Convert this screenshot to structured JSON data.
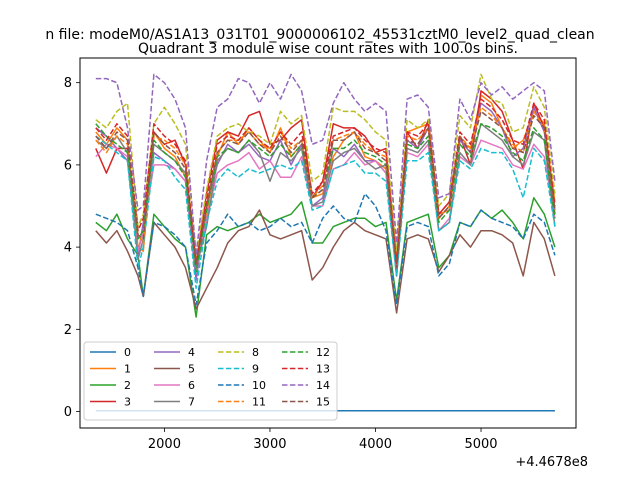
{
  "figure": {
    "suptitle": "n file: modeM0/AS1A13_031T01_9000006102_45531cztM0_level2_quad_clean",
    "title": "Quadrant 3 module wise count rates with 100.0s bins.",
    "x_offset_label": "+4.4678e8"
  },
  "chart_data": {
    "type": "line",
    "title": "Quadrant 3 module wise count rates with 100.0s bins.",
    "xlabel": "",
    "ylabel": "",
    "x_offset": 446780000,
    "xlim": [
      1200,
      5900
    ],
    "ylim": [
      -0.4,
      8.6
    ],
    "xticks": [
      2000,
      3000,
      4000,
      5000
    ],
    "yticks": [
      0,
      2,
      4,
      6,
      8
    ],
    "xtick_labels": [
      "2000",
      "3000",
      "4000",
      "5000"
    ],
    "ytick_labels": [
      "0",
      "2",
      "4",
      "6",
      "8"
    ],
    "grid": false,
    "legend": {
      "position": "lower-left",
      "ncol": 4
    },
    "x": [
      1350,
      1450,
      1550,
      1650,
      1750,
      1800,
      1900,
      2000,
      2100,
      2200,
      2300,
      2400,
      2500,
      2600,
      2700,
      2800,
      2900,
      3000,
      3100,
      3200,
      3300,
      3400,
      3500,
      3600,
      3700,
      3800,
      3900,
      4000,
      4100,
      4200,
      4300,
      4400,
      4500,
      4600,
      4700,
      4800,
      4900,
      5000,
      5100,
      5200,
      5300,
      5400,
      5500,
      5600,
      5700
    ],
    "series": [
      {
        "name": "0",
        "color": "#1f77b4",
        "dash": "solid",
        "values": [
          0.02,
          0.02,
          0.02,
          0.02,
          0.02,
          0.02,
          0.02,
          0.02,
          0.02,
          0.02,
          0.02,
          0.02,
          0.02,
          0.02,
          0.02,
          0.02,
          0.02,
          0.02,
          0.02,
          0.02,
          0.02,
          0.02,
          0.02,
          0.02,
          0.02,
          0.02,
          0.02,
          0.02,
          0.02,
          0.02,
          0.02,
          0.02,
          0.02,
          0.02,
          0.02,
          0.02,
          0.02,
          0.02,
          0.02,
          0.02,
          0.02,
          0.02,
          0.02,
          0.02,
          0.02
        ]
      },
      {
        "name": "1",
        "color": "#ff7f0e",
        "dash": "solid",
        "values": [
          6.8,
          6.5,
          6.9,
          6.6,
          4.0,
          3.9,
          6.8,
          6.4,
          6.2,
          5.7,
          3.6,
          4.8,
          6.2,
          6.8,
          6.5,
          6.9,
          6.6,
          6.3,
          6.9,
          6.2,
          6.5,
          5.2,
          5.3,
          6.2,
          6.6,
          6.8,
          6.2,
          6.1,
          5.9,
          3.6,
          6.8,
          6.9,
          7.0,
          4.8,
          4.9,
          6.6,
          6.4,
          7.7,
          7.5,
          6.9,
          6.4,
          6.6,
          7.3,
          7.0,
          5.1
        ]
      },
      {
        "name": "2",
        "color": "#2ca02c",
        "dash": "solid",
        "values": [
          4.6,
          4.4,
          4.8,
          4.2,
          3.8,
          2.8,
          4.8,
          4.5,
          4.2,
          4.0,
          2.3,
          4.3,
          4.5,
          4.4,
          4.5,
          4.6,
          4.8,
          4.6,
          4.7,
          4.8,
          5.1,
          4.1,
          4.1,
          4.5,
          4.6,
          4.7,
          4.7,
          4.5,
          4.6,
          2.7,
          4.6,
          4.7,
          4.8,
          3.5,
          3.8,
          4.6,
          4.5,
          4.9,
          4.7,
          4.9,
          4.6,
          4.2,
          5.2,
          4.8,
          4.0
        ]
      },
      {
        "name": "3",
        "color": "#d62728",
        "dash": "solid",
        "values": [
          6.4,
          5.8,
          6.4,
          6.4,
          3.9,
          4.4,
          6.8,
          6.5,
          6.6,
          6.0,
          3.6,
          5.3,
          6.6,
          6.8,
          6.7,
          7.2,
          7.3,
          6.5,
          6.6,
          6.9,
          7.1,
          5.2,
          5.6,
          7.0,
          6.9,
          6.9,
          6.7,
          6.3,
          6.4,
          3.7,
          6.8,
          6.4,
          7.1,
          4.8,
          5.1,
          6.7,
          6.0,
          7.8,
          7.6,
          7.3,
          6.6,
          5.9,
          7.5,
          6.9,
          4.8
        ]
      },
      {
        "name": "4",
        "color": "#9467bd",
        "dash": "solid",
        "values": [
          6.9,
          6.7,
          6.4,
          6.1,
          3.8,
          4.6,
          6.3,
          6.1,
          5.9,
          5.6,
          3.2,
          5.0,
          6.0,
          6.5,
          6.3,
          6.5,
          6.2,
          6.1,
          6.6,
          6.0,
          6.5,
          5.0,
          5.2,
          6.4,
          6.2,
          6.5,
          6.1,
          6.1,
          5.8,
          3.3,
          6.6,
          6.4,
          6.9,
          4.7,
          5.0,
          6.6,
          6.3,
          7.5,
          7.3,
          6.9,
          6.2,
          6.4,
          7.4,
          6.8,
          4.9
        ]
      },
      {
        "name": "5",
        "color": "#8c564b",
        "dash": "solid",
        "values": [
          4.4,
          4.1,
          4.4,
          3.9,
          3.3,
          2.8,
          4.6,
          4.3,
          4.0,
          3.5,
          2.5,
          3.0,
          3.5,
          4.1,
          4.4,
          4.5,
          4.9,
          4.3,
          4.2,
          4.3,
          4.4,
          3.2,
          3.5,
          4.0,
          4.4,
          4.6,
          4.4,
          4.3,
          4.2,
          2.4,
          4.2,
          4.3,
          4.2,
          3.4,
          3.8,
          4.3,
          4.0,
          4.4,
          4.4,
          4.3,
          4.1,
          3.3,
          4.6,
          4.2,
          3.3
        ]
      },
      {
        "name": "6",
        "color": "#e377c2",
        "dash": "solid",
        "values": [
          6.2,
          6.5,
          6.4,
          6.2,
          3.9,
          4.4,
          6.0,
          6.0,
          5.9,
          5.6,
          3.4,
          4.7,
          5.8,
          6.0,
          6.1,
          6.3,
          5.9,
          6.1,
          5.7,
          5.7,
          6.2,
          5.0,
          5.0,
          5.9,
          6.0,
          6.3,
          6.0,
          6.1,
          5.8,
          3.4,
          6.3,
          6.2,
          6.5,
          4.4,
          4.7,
          6.2,
          6.0,
          6.6,
          6.5,
          6.4,
          6.0,
          5.9,
          6.5,
          6.2,
          4.7
        ]
      },
      {
        "name": "7",
        "color": "#7f7f7f",
        "dash": "solid",
        "values": [
          6.6,
          6.4,
          6.7,
          6.3,
          3.7,
          4.2,
          6.5,
          6.3,
          6.1,
          5.8,
          3.5,
          4.5,
          6.1,
          6.4,
          6.3,
          6.6,
          6.3,
          5.6,
          6.3,
          6.1,
          6.4,
          5.0,
          5.1,
          6.1,
          6.3,
          6.4,
          6.1,
          5.9,
          6.0,
          3.3,
          6.4,
          6.3,
          6.6,
          4.4,
          4.6,
          6.3,
          6.0,
          7.0,
          6.8,
          6.6,
          6.2,
          6.0,
          6.8,
          6.6,
          4.5
        ]
      },
      {
        "name": "8",
        "color": "#bcbd22",
        "dash": "dashed",
        "values": [
          7.1,
          6.9,
          7.3,
          7.5,
          4.5,
          4.8,
          7.0,
          7.4,
          7.0,
          6.5,
          3.8,
          5.4,
          6.7,
          6.9,
          7.0,
          6.8,
          6.7,
          6.5,
          7.3,
          7.0,
          7.2,
          5.6,
          5.8,
          7.4,
          7.3,
          7.3,
          7.1,
          6.8,
          6.6,
          3.9,
          7.1,
          6.9,
          7.1,
          5.0,
          5.3,
          7.2,
          6.9,
          8.2,
          7.6,
          7.5,
          6.8,
          6.9,
          7.9,
          7.4,
          5.3
        ]
      },
      {
        "name": "9",
        "color": "#17becf",
        "dash": "dashed",
        "values": [
          6.7,
          6.5,
          6.3,
          6.1,
          3.5,
          4.0,
          6.2,
          6.1,
          5.7,
          5.4,
          3.0,
          4.6,
          5.6,
          5.9,
          5.7,
          5.9,
          5.8,
          5.9,
          6.0,
          5.9,
          6.1,
          4.9,
          5.0,
          5.9,
          6.0,
          6.1,
          5.8,
          5.8,
          5.6,
          3.3,
          6.1,
          6.1,
          6.3,
          4.4,
          4.6,
          6.1,
          5.9,
          6.4,
          6.3,
          6.3,
          5.9,
          5.2,
          6.4,
          6.1,
          4.5
        ]
      },
      {
        "name": "10",
        "color": "#1f77b4",
        "dash": "dashed",
        "values": [
          4.8,
          4.7,
          4.6,
          4.4,
          3.5,
          2.8,
          4.6,
          4.5,
          4.3,
          4.0,
          2.6,
          4.1,
          4.4,
          4.8,
          4.5,
          4.6,
          4.4,
          4.5,
          4.7,
          4.5,
          4.6,
          4.1,
          4.7,
          5.0,
          4.7,
          4.6,
          5.3,
          5.0,
          4.4,
          2.6,
          4.5,
          4.6,
          4.5,
          3.3,
          3.6,
          4.6,
          4.5,
          4.9,
          4.7,
          4.6,
          4.5,
          4.2,
          4.8,
          4.6,
          3.8
        ]
      },
      {
        "name": "11",
        "color": "#ff7f0e",
        "dash": "dashed",
        "values": [
          6.6,
          6.3,
          6.7,
          6.5,
          4.3,
          4.1,
          6.7,
          6.6,
          6.4,
          6.0,
          3.7,
          4.9,
          6.3,
          6.6,
          6.6,
          6.8,
          6.5,
          6.4,
          6.8,
          6.4,
          6.6,
          5.2,
          5.5,
          6.6,
          6.7,
          6.8,
          6.5,
          6.3,
          6.2,
          3.6,
          6.7,
          6.6,
          6.9,
          4.7,
          5.0,
          6.7,
          6.4,
          7.4,
          7.2,
          6.9,
          6.5,
          6.3,
          7.3,
          6.9,
          4.9
        ]
      },
      {
        "name": "12",
        "color": "#2ca02c",
        "dash": "dashed",
        "values": [
          7.0,
          6.7,
          6.5,
          6.3,
          4.2,
          4.4,
          6.6,
          6.3,
          6.1,
          5.7,
          3.4,
          4.9,
          6.2,
          6.4,
          6.3,
          6.6,
          6.4,
          6.2,
          6.5,
          6.2,
          6.5,
          5.2,
          5.4,
          6.4,
          6.4,
          6.6,
          6.3,
          6.2,
          6.0,
          3.5,
          6.5,
          6.4,
          6.7,
          4.6,
          4.9,
          6.5,
          6.2,
          7.0,
          6.9,
          6.7,
          6.3,
          6.1,
          6.9,
          6.6,
          4.7
        ]
      },
      {
        "name": "13",
        "color": "#d62728",
        "dash": "dashed",
        "values": [
          6.9,
          6.6,
          7.0,
          6.7,
          4.4,
          4.7,
          7.0,
          6.7,
          6.5,
          6.1,
          3.6,
          5.1,
          6.5,
          6.7,
          6.6,
          6.9,
          6.6,
          6.4,
          6.8,
          6.5,
          6.8,
          5.3,
          5.6,
          6.7,
          6.8,
          6.9,
          6.6,
          6.4,
          6.3,
          3.6,
          6.8,
          6.7,
          7.0,
          4.8,
          5.1,
          6.8,
          6.5,
          7.6,
          7.4,
          7.1,
          6.6,
          6.5,
          7.5,
          7.1,
          5.0
        ]
      },
      {
        "name": "14",
        "color": "#9467bd",
        "dash": "dashed",
        "values": [
          8.1,
          8.1,
          8.0,
          6.9,
          4.9,
          5.0,
          8.2,
          8.0,
          7.6,
          6.9,
          3.8,
          6.1,
          7.4,
          7.6,
          8.1,
          8.0,
          7.5,
          8.0,
          7.6,
          8.2,
          7.8,
          6.5,
          6.6,
          7.5,
          8.0,
          7.6,
          7.3,
          7.5,
          7.3,
          4.1,
          7.6,
          7.7,
          7.4,
          5.2,
          5.3,
          7.6,
          7.1,
          8.0,
          7.7,
          7.9,
          7.6,
          7.8,
          8.0,
          7.8,
          5.6
        ]
      },
      {
        "name": "15",
        "color": "#8c564b",
        "dash": "dashed",
        "values": [
          6.7,
          6.4,
          6.8,
          6.6,
          4.3,
          4.2,
          6.8,
          6.5,
          6.3,
          5.9,
          3.6,
          5.0,
          6.3,
          6.6,
          6.5,
          6.8,
          6.5,
          6.3,
          6.7,
          6.3,
          6.6,
          5.2,
          5.4,
          6.6,
          6.6,
          6.8,
          6.4,
          6.3,
          6.1,
          3.5,
          6.6,
          6.5,
          6.9,
          4.7,
          5.0,
          6.7,
          6.3,
          7.3,
          7.1,
          6.9,
          6.4,
          6.3,
          7.2,
          6.9,
          4.9
        ]
      }
    ]
  }
}
